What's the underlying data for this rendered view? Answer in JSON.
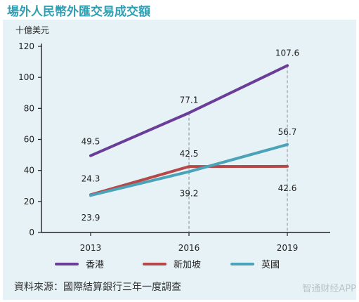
{
  "title": "場外人民幣外匯交易成交額",
  "source": "資料來源：國際結算銀行三年一度調查",
  "watermark": "智通财经APP",
  "colors": {
    "title": "#2f9fb3",
    "panel": "#e6f2f6",
    "香港": "#6a3d99",
    "新加坡": "#b54848",
    "英國": "#4aa3b8"
  },
  "chart_data": {
    "type": "line",
    "unit_label": "十億美元",
    "categories": [
      "2013",
      "2016",
      "2019"
    ],
    "ylim": [
      0,
      120
    ],
    "yticks": [
      "0",
      "20",
      "40",
      "60",
      "80",
      "100",
      "120"
    ],
    "series": [
      {
        "name": "香港",
        "values": [
          49.5,
          77.1,
          107.6
        ],
        "labels": [
          "49.5",
          "77.1",
          "107.6"
        ]
      },
      {
        "name": "新加坡",
        "values": [
          24.3,
          42.5,
          42.6
        ],
        "labels": [
          "24.3",
          "42.5",
          "42.6"
        ]
      },
      {
        "name": "英國",
        "values": [
          23.9,
          39.2,
          56.7
        ],
        "labels": [
          "23.9",
          "39.2",
          "56.7"
        ]
      }
    ],
    "legend_position": "bottom",
    "grid": false
  }
}
